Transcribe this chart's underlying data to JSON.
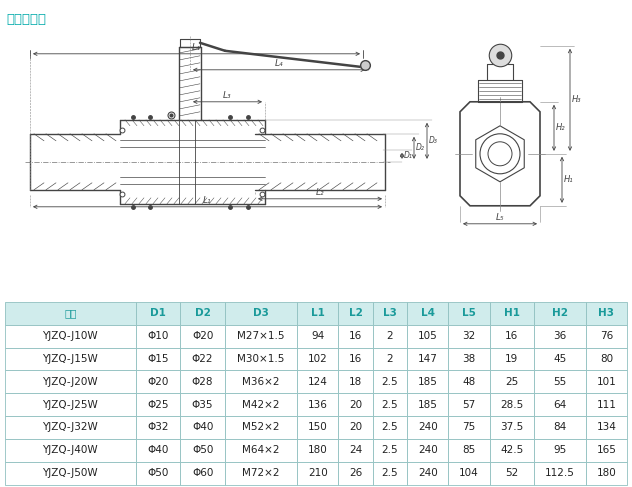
{
  "title": "外螺纹连接",
  "title_color": "#00aaaa",
  "headers": [
    "型号",
    "D1",
    "D2",
    "D3",
    "L1",
    "L2",
    "L3",
    "L4",
    "L5",
    "H1",
    "H2",
    "H3"
  ],
  "header_color": "#1a9a9a",
  "rows": [
    [
      "YJZQ-J10W",
      "Φ10",
      "Φ20",
      "M27×1.5",
      "94",
      "16",
      "2",
      "105",
      "32",
      "16",
      "36",
      "76"
    ],
    [
      "YJZQ-J15W",
      "Φ15",
      "Φ22",
      "M30×1.5",
      "102",
      "16",
      "2",
      "147",
      "38",
      "19",
      "45",
      "80"
    ],
    [
      "YJZQ-J20W",
      "Φ20",
      "Φ28",
      "M36×2",
      "124",
      "18",
      "2.5",
      "185",
      "48",
      "25",
      "55",
      "101"
    ],
    [
      "YJZQ-J25W",
      "Φ25",
      "Φ35",
      "M42×2",
      "136",
      "20",
      "2.5",
      "185",
      "57",
      "28.5",
      "64",
      "111"
    ],
    [
      "YJZQ-J32W",
      "Φ32",
      "Φ40",
      "M52×2",
      "150",
      "20",
      "2.5",
      "240",
      "75",
      "37.5",
      "84",
      "134"
    ],
    [
      "YJZQ-J40W",
      "Φ40",
      "Φ50",
      "M64×2",
      "180",
      "24",
      "2.5",
      "240",
      "85",
      "42.5",
      "95",
      "165"
    ],
    [
      "YJZQ-J50W",
      "Φ50",
      "Φ60",
      "M72×2",
      "210",
      "26",
      "2.5",
      "240",
      "104",
      "52",
      "112.5",
      "180"
    ]
  ],
  "table_header_bg": "#d0ecec",
  "table_row_bg": "#ffffff",
  "table_border_color": "#90c0c0",
  "text_color": "#222222",
  "dc": "#444444",
  "bg_color": "#ffffff",
  "col_widths": [
    1.9,
    0.65,
    0.65,
    1.05,
    0.6,
    0.5,
    0.5,
    0.6,
    0.6,
    0.65,
    0.75,
    0.6
  ]
}
